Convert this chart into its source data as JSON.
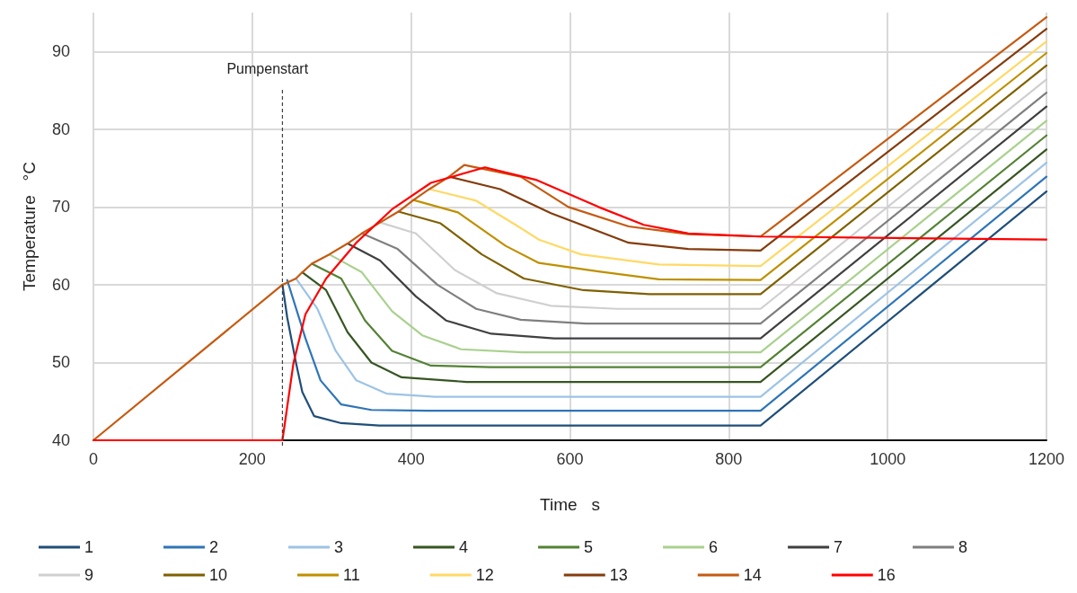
{
  "chart_data": {
    "type": "line",
    "xlabel": "Time   s",
    "ylabel": "Temperature   °C",
    "xlim": [
      0,
      1200
    ],
    "xticks": [
      0,
      200,
      400,
      600,
      800,
      1000,
      1200
    ],
    "ylim": [
      40,
      95
    ],
    "yticks": [
      40,
      50,
      60,
      70,
      80,
      90
    ],
    "grid": true,
    "legend": "bottom",
    "line_style": "solid",
    "ref_lines": [
      {
        "axis": "x",
        "value": 238,
        "label": "Pumpenstart",
        "line_style": "dashed",
        "color": "#404040"
      }
    ],
    "series": [
      {
        "name": "1",
        "color": "#1f4e79",
        "x": [
          238,
          244,
          255,
          263,
          278,
          312,
          360,
          840,
          1200
        ],
        "values": [
          60,
          55.8,
          50,
          46.2,
          43.1,
          42.2,
          41.9,
          41.9,
          72.0
        ]
      },
      {
        "name": "2",
        "color": "#2e75b6",
        "x": [
          244,
          267,
          286,
          312,
          350,
          420,
          840,
          1200
        ],
        "values": [
          60.6,
          53.1,
          47.7,
          44.6,
          43.9,
          43.8,
          43.8,
          73.9
        ]
      },
      {
        "name": "3",
        "color": "#9dc3e6",
        "x": [
          255,
          282,
          305,
          331,
          369,
          430,
          840,
          1200
        ],
        "values": [
          60.8,
          56.9,
          51.5,
          47.7,
          46.0,
          45.6,
          45.6,
          75.7
        ]
      },
      {
        "name": "4",
        "color": "#375623",
        "x": [
          263,
          293,
          320,
          350,
          388,
          470,
          840,
          1200
        ],
        "values": [
          61.6,
          59.3,
          53.9,
          50.0,
          48.1,
          47.5,
          47.5,
          77.4
        ]
      },
      {
        "name": "5",
        "color": "#548235",
        "x": [
          275,
          312,
          342,
          376,
          425,
          500,
          840,
          1200
        ],
        "values": [
          62.7,
          60.8,
          55.4,
          51.5,
          49.6,
          49.4,
          49.4,
          79.2
        ]
      },
      {
        "name": "6",
        "color": "#a9d18e",
        "x": [
          297,
          338,
          376,
          414,
          463,
          540,
          840,
          1200
        ],
        "values": [
          63.9,
          61.6,
          56.6,
          53.5,
          51.7,
          51.3,
          51.3,
          81.1
        ]
      },
      {
        "name": "7",
        "color": "#404040",
        "x": [
          320,
          361,
          406,
          444,
          501,
          580,
          840,
          1200
        ],
        "values": [
          65.3,
          63.1,
          58.5,
          55.4,
          53.7,
          53.1,
          53.1,
          82.9
        ]
      },
      {
        "name": "8",
        "color": "#7f7f7f",
        "x": [
          338,
          383,
          433,
          482,
          538,
          620,
          840,
          1200
        ],
        "values": [
          66.6,
          64.6,
          60.0,
          56.9,
          55.5,
          55.0,
          55.0,
          84.7
        ]
      },
      {
        "name": "9",
        "color": "#cfcfcf",
        "x": [
          361,
          406,
          455,
          508,
          576,
          660,
          840,
          1200
        ],
        "values": [
          68.0,
          66.6,
          61.9,
          58.9,
          57.3,
          56.9,
          56.9,
          86.4
        ]
      },
      {
        "name": "10",
        "color": "#7f6000",
        "x": [
          384,
          437,
          489,
          542,
          617,
          700,
          840,
          1200
        ],
        "values": [
          69.4,
          67.9,
          63.9,
          60.8,
          59.3,
          58.8,
          58.8,
          88.2
        ]
      },
      {
        "name": "11",
        "color": "#bf9000",
        "x": [
          403,
          459,
          519,
          561,
          636,
          712,
          840,
          1200
        ],
        "values": [
          70.9,
          69.3,
          65.0,
          62.8,
          61.7,
          60.7,
          60.6,
          89.8
        ]
      },
      {
        "name": "12",
        "color": "#ffd966",
        "x": [
          423,
          482,
          538,
          561,
          614,
          712,
          840,
          1200
        ],
        "values": [
          72.3,
          70.8,
          67.3,
          65.8,
          63.9,
          62.6,
          62.4,
          91.3
        ]
      },
      {
        "name": "13",
        "color": "#843c0c",
        "x": [
          448,
          512,
          576,
          674,
          749,
          840,
          1200
        ],
        "values": [
          73.9,
          72.3,
          69.2,
          65.4,
          64.6,
          64.4,
          92.9
        ]
      },
      {
        "name": "14",
        "color": "#c55a11",
        "x": [
          0,
          238,
          255,
          263,
          275,
          297,
          320,
          338,
          361,
          384,
          403,
          423,
          448,
          467,
          538,
          598,
          674,
          749,
          840,
          1200
        ],
        "values": [
          40,
          60,
          60.8,
          61.6,
          62.7,
          63.9,
          65.3,
          66.6,
          68.0,
          69.4,
          70.9,
          72.3,
          73.9,
          75.4,
          73.9,
          70.0,
          67.5,
          66.5,
          66.2,
          94.4
        ]
      },
      {
        "name": "16",
        "color": "#ff0000",
        "x": [
          0,
          238,
          252,
          267,
          293,
          331,
          376,
          425,
          493,
          557,
          636,
          693,
          749,
          840,
          1200
        ],
        "values": [
          40,
          40,
          50,
          56.2,
          60.8,
          65.4,
          69.7,
          73.1,
          75.1,
          73.5,
          70.0,
          67.7,
          66.6,
          66.2,
          65.8
        ]
      }
    ]
  }
}
